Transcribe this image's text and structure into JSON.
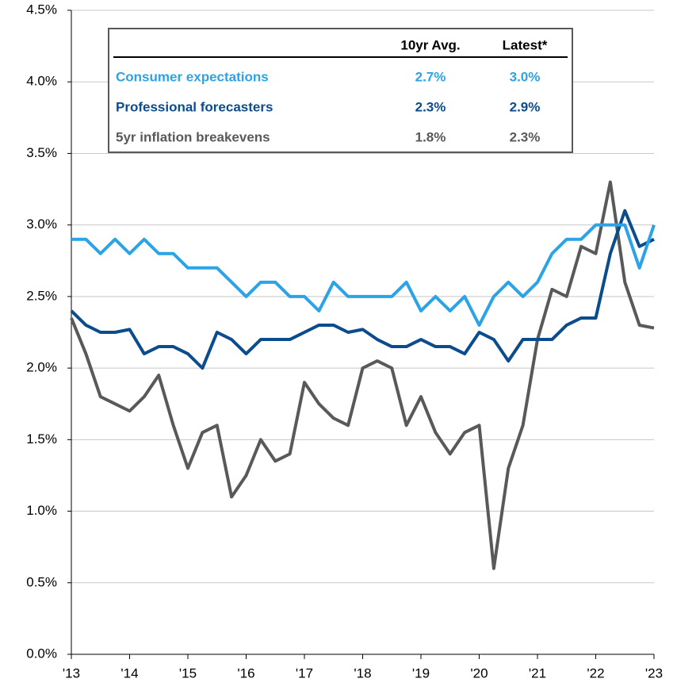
{
  "chart_data": {
    "type": "line",
    "x": [
      2013,
      2013.25,
      2013.5,
      2013.75,
      2014,
      2014.25,
      2014.5,
      2014.75,
      2015,
      2015.25,
      2015.5,
      2015.75,
      2016,
      2016.25,
      2016.5,
      2016.75,
      2017,
      2017.25,
      2017.5,
      2017.75,
      2018,
      2018.25,
      2018.5,
      2018.75,
      2019,
      2019.25,
      2019.5,
      2019.75,
      2020,
      2020.25,
      2020.5,
      2020.75,
      2021,
      2021.25,
      2021.5,
      2021.75,
      2022,
      2022.25,
      2022.5,
      2022.75,
      2023
    ],
    "series": [
      {
        "name": "Consumer expectations",
        "color": "#2ba3e6",
        "stats": [
          "2.7%",
          "3.0%"
        ],
        "values": [
          2.9,
          2.9,
          2.8,
          2.9,
          2.8,
          2.9,
          2.8,
          2.8,
          2.7,
          2.7,
          2.7,
          2.6,
          2.5,
          2.6,
          2.6,
          2.5,
          2.5,
          2.4,
          2.6,
          2.5,
          2.5,
          2.5,
          2.5,
          2.6,
          2.4,
          2.5,
          2.4,
          2.5,
          2.3,
          2.5,
          2.6,
          2.5,
          2.6,
          2.8,
          2.9,
          2.9,
          3.0,
          3.0,
          3.0,
          2.7,
          3.0
        ]
      },
      {
        "name": "Professional forecasters",
        "color": "#0b4c8c",
        "stats": [
          "2.3%",
          "2.9%"
        ],
        "values": [
          2.4,
          2.3,
          2.25,
          2.25,
          2.27,
          2.1,
          2.15,
          2.15,
          2.1,
          2.0,
          2.25,
          2.2,
          2.1,
          2.2,
          2.2,
          2.2,
          2.25,
          2.3,
          2.3,
          2.25,
          2.27,
          2.2,
          2.15,
          2.15,
          2.2,
          2.15,
          2.15,
          2.1,
          2.25,
          2.2,
          2.05,
          2.2,
          2.2,
          2.2,
          2.3,
          2.35,
          2.35,
          2.8,
          3.1,
          2.85,
          2.9
        ]
      },
      {
        "name": "5yr inflation breakevens",
        "color": "#58595b",
        "stats": [
          "1.8%",
          "2.3%"
        ],
        "values": [
          2.35,
          2.1,
          1.8,
          1.75,
          1.7,
          1.8,
          1.95,
          1.6,
          1.3,
          1.55,
          1.6,
          1.1,
          1.25,
          1.5,
          1.35,
          1.4,
          1.9,
          1.75,
          1.65,
          1.6,
          2.0,
          2.05,
          2.0,
          1.6,
          1.8,
          1.55,
          1.4,
          1.55,
          1.6,
          0.6,
          1.3,
          1.6,
          2.2,
          2.55,
          2.5,
          2.85,
          2.8,
          3.3,
          2.6,
          2.3,
          2.28
        ]
      }
    ],
    "legend_columns": [
      "10yr Avg.",
      "Latest*"
    ],
    "xlim": [
      2013,
      2023
    ],
    "xticks": [
      {
        "value": 2013,
        "label": "'13"
      },
      {
        "value": 2014,
        "label": "'14"
      },
      {
        "value": 2015,
        "label": "'15"
      },
      {
        "value": 2016,
        "label": "'16"
      },
      {
        "value": 2017,
        "label": "'17"
      },
      {
        "value": 2018,
        "label": "'18"
      },
      {
        "value": 2019,
        "label": "'19"
      },
      {
        "value": 2020,
        "label": "'20"
      },
      {
        "value": 2021,
        "label": "'21"
      },
      {
        "value": 2022,
        "label": "'22"
      },
      {
        "value": 2023,
        "label": "'23"
      }
    ],
    "ylim": [
      0,
      4.5
    ],
    "yticks": [
      {
        "value": 0,
        "label": "0.0%"
      },
      {
        "value": 0.5,
        "label": "0.5%"
      },
      {
        "value": 1,
        "label": "1.0%"
      },
      {
        "value": 1.5,
        "label": "1.5%"
      },
      {
        "value": 2,
        "label": "2.0%"
      },
      {
        "value": 2.5,
        "label": "2.5%"
      },
      {
        "value": 3,
        "label": "3.0%"
      },
      {
        "value": 3.5,
        "label": "3.5%"
      },
      {
        "value": 4,
        "label": "4.0%"
      },
      {
        "value": 4.5,
        "label": "4.5%"
      }
    ],
    "grid": true
  }
}
